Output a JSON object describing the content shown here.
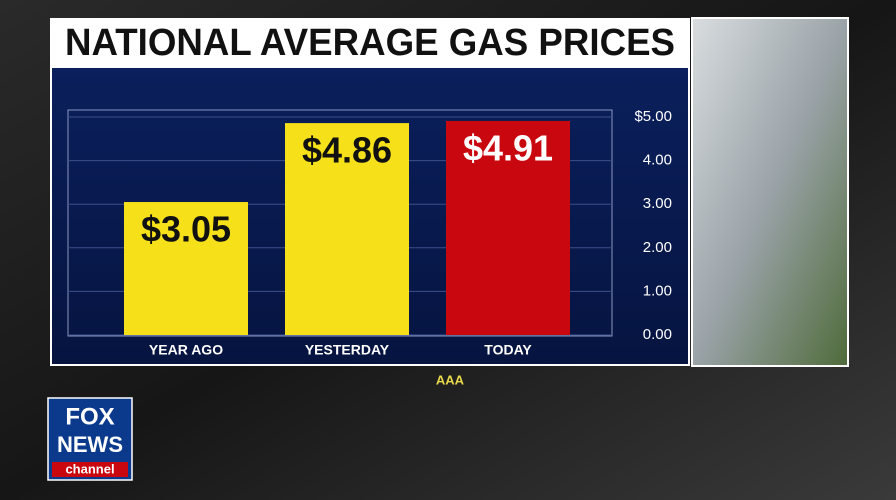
{
  "chart_data": {
    "type": "bar",
    "title": "NATIONAL AVERAGE GAS PRICES",
    "categories": [
      "YEAR AGO",
      "YESTERDAY",
      "TODAY"
    ],
    "values": [
      3.05,
      4.86,
      4.91
    ],
    "value_labels": [
      "$3.05",
      "$4.86",
      "$4.91"
    ],
    "colors": [
      "#f5e01a",
      "#f5e01a",
      "#c8070e"
    ],
    "ylim": [
      0,
      5
    ],
    "yticks": [
      {
        "value": 5,
        "label": "$5.00"
      },
      {
        "value": 4,
        "label": "4.00"
      },
      {
        "value": 3,
        "label": "3.00"
      },
      {
        "value": 2,
        "label": "2.00"
      },
      {
        "value": 1,
        "label": "1.00"
      },
      {
        "value": 0,
        "label": "0.00"
      }
    ],
    "grid": true,
    "source": "AAA"
  },
  "logo": [
    "FOX",
    "NEWS",
    "channel"
  ]
}
